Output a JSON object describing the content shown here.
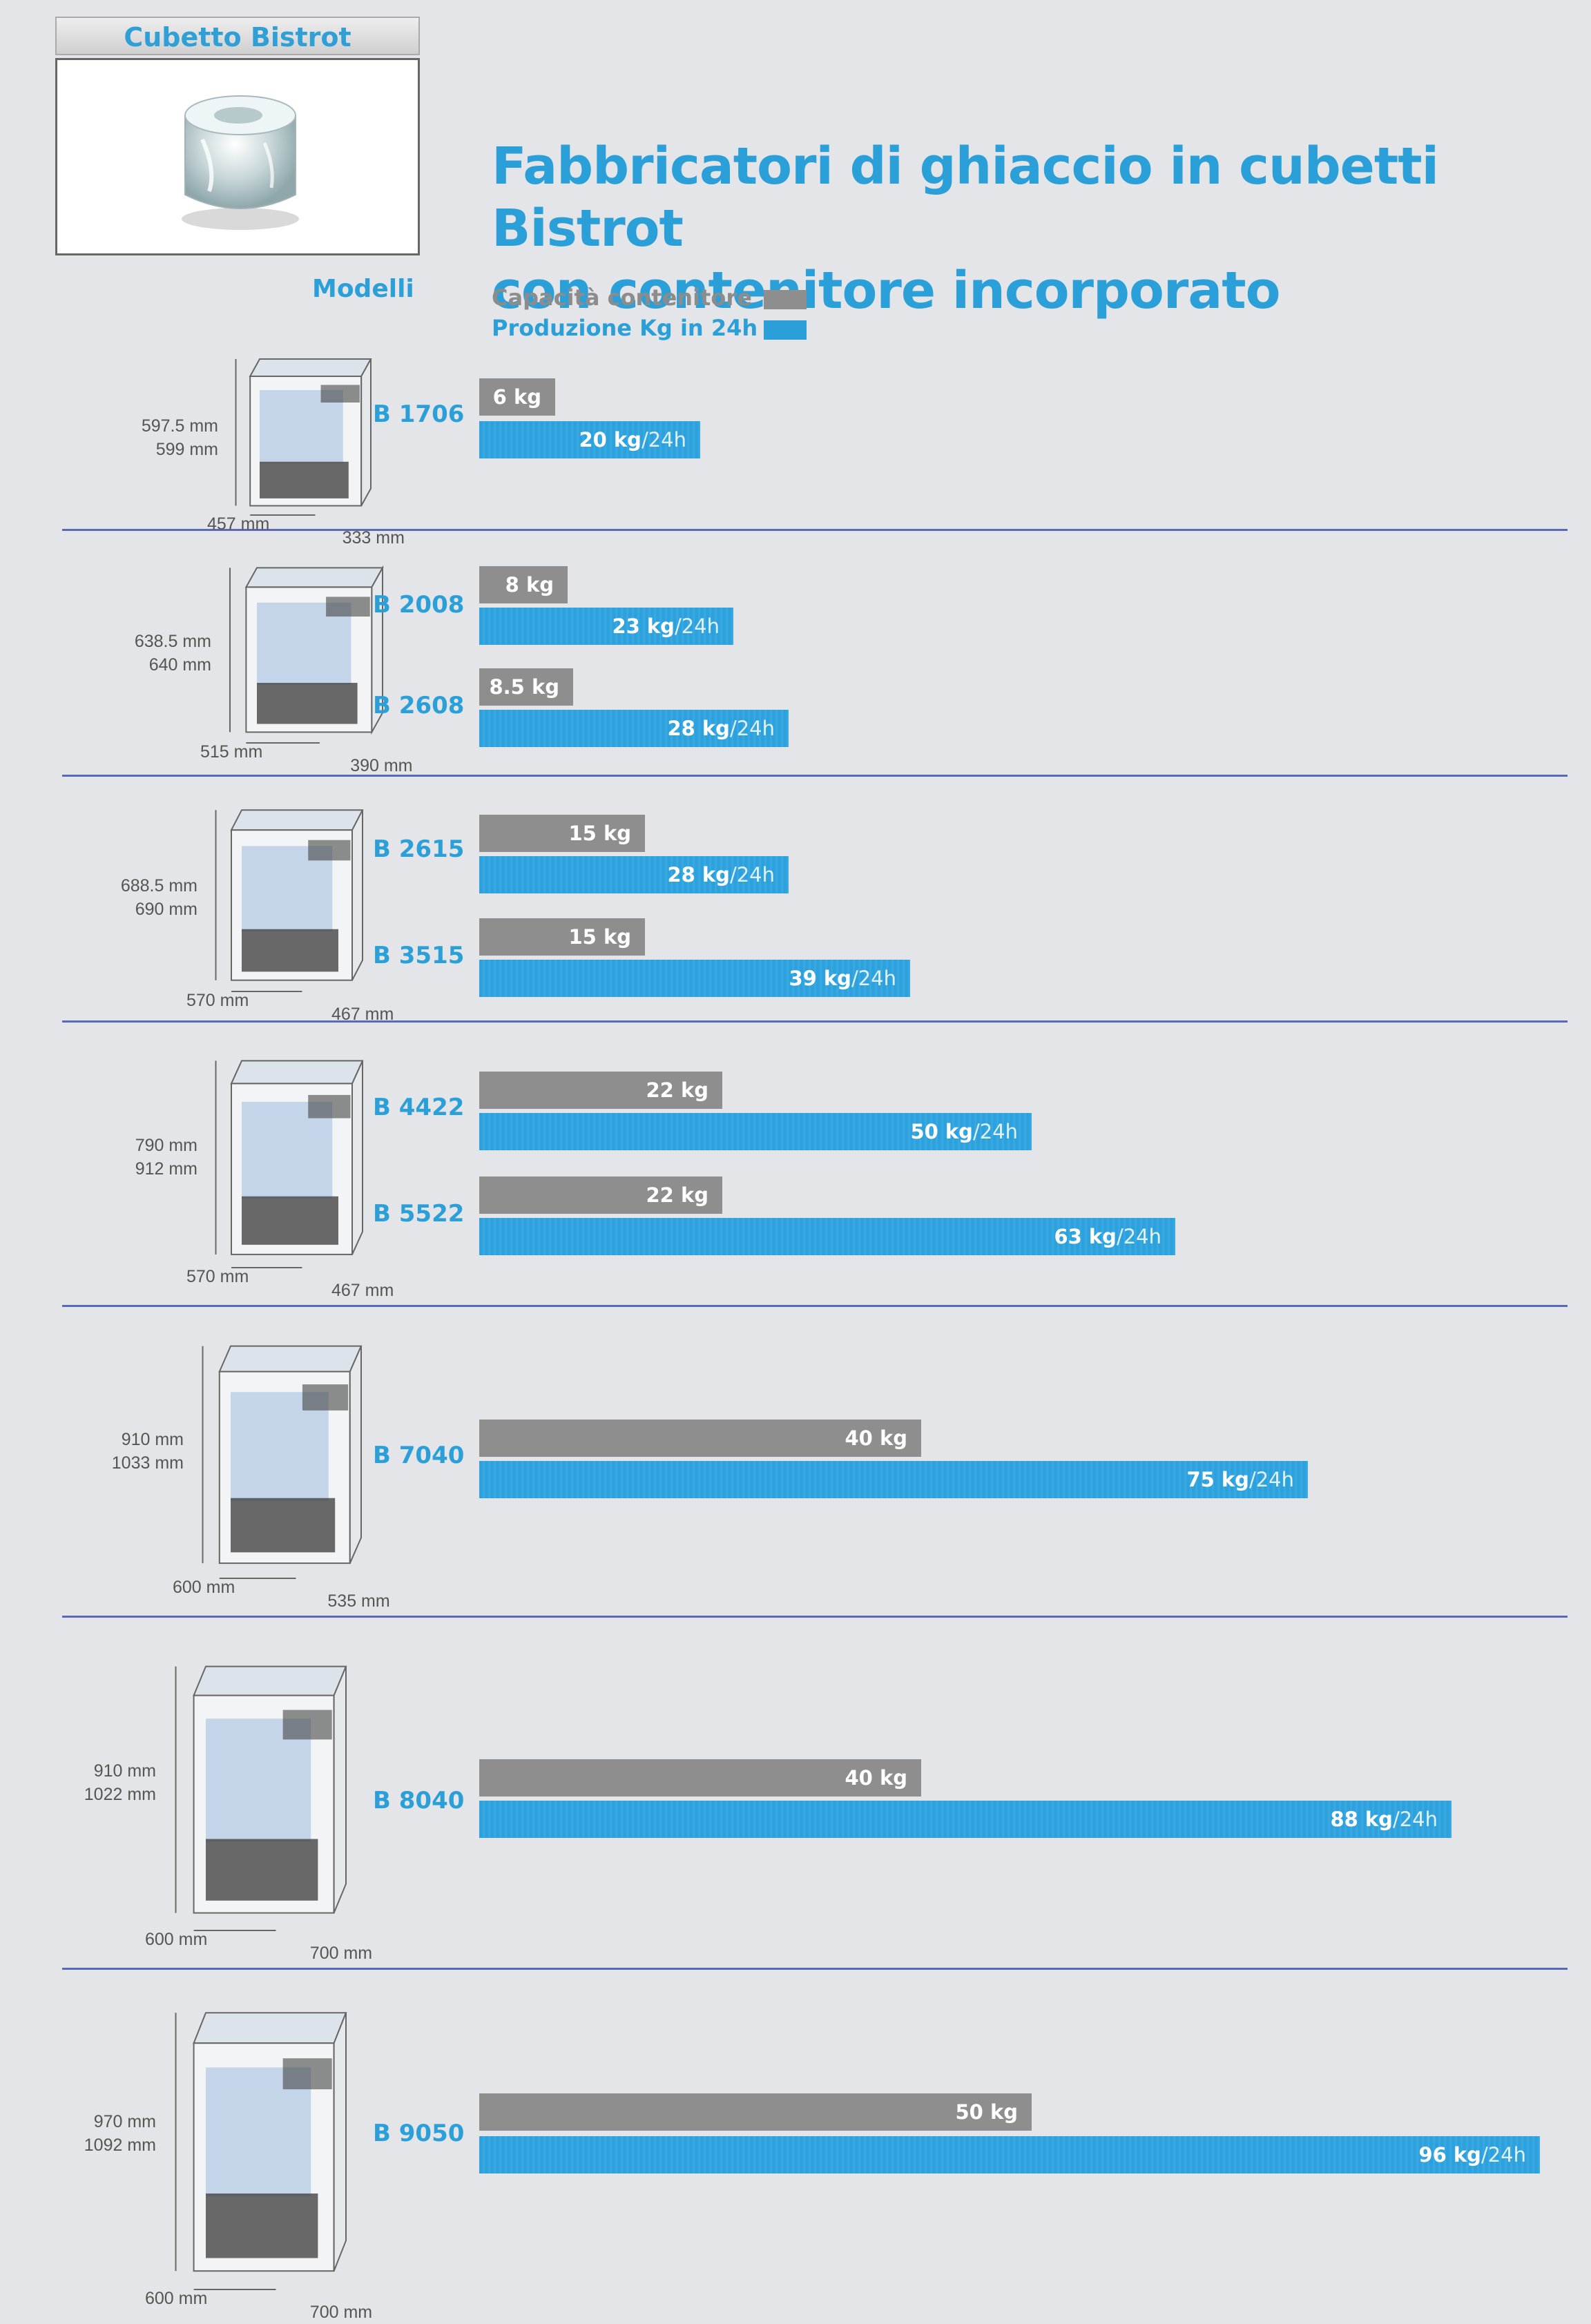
{
  "header": {
    "badge": "Cubetto Bistrot",
    "title_line1": "Fabbricatori di ghiaccio in cubetti Bistrot",
    "title_line2": "con contenitore incorporato",
    "models_heading": "Modelli"
  },
  "legend": {
    "capacity": "Capacità contenitore",
    "production": "Produzione Kg in 24h"
  },
  "colors": {
    "capacity": "#8e8e8e",
    "production": "#2ea0db",
    "divider": "#5a68b8"
  },
  "groups": [
    {
      "h1": "597.5 mm",
      "h2": "599 mm",
      "depth": "457 mm",
      "width": "333 mm",
      "models": [
        {
          "name": "B 1706",
          "cap": "6 kg",
          "prod": "20 kg",
          "unit": "/24h"
        }
      ]
    },
    {
      "h1": "638.5 mm",
      "h2": "640 mm",
      "depth": "515 mm",
      "width": "390 mm",
      "models": [
        {
          "name": "B 2008",
          "cap": "8 kg",
          "prod": "23 kg",
          "unit": "/24h"
        },
        {
          "name": "B 2608",
          "cap": "8.5 kg",
          "prod": "28 kg",
          "unit": "/24h"
        }
      ]
    },
    {
      "h1": "688.5 mm",
      "h2": "690 mm",
      "depth": "570 mm",
      "width": "467 mm",
      "models": [
        {
          "name": "B 2615",
          "cap": "15 kg",
          "prod": "28 kg",
          "unit": "/24h"
        },
        {
          "name": "B 3515",
          "cap": "15 kg",
          "prod": "39 kg",
          "unit": "/24h"
        }
      ]
    },
    {
      "h1": "790 mm",
      "h2": "912 mm",
      "depth": "570 mm",
      "width": "467 mm",
      "models": [
        {
          "name": "B 4422",
          "cap": "22 kg",
          "prod": "50 kg",
          "unit": "/24h"
        },
        {
          "name": "B 5522",
          "cap": "22 kg",
          "prod": "63 kg",
          "unit": "/24h"
        }
      ]
    },
    {
      "h1": "910 mm",
      "h2": "1033 mm",
      "depth": "600 mm",
      "width": "535 mm",
      "models": [
        {
          "name": "B 7040",
          "cap": "40 kg",
          "prod": "75 kg",
          "unit": "/24h"
        }
      ]
    },
    {
      "h1": "910 mm",
      "h2": "1022 mm",
      "depth": "600 mm",
      "width": "700 mm",
      "models": [
        {
          "name": "B 8040",
          "cap": "40 kg",
          "prod": "88 kg",
          "unit": "/24h"
        }
      ]
    },
    {
      "h1": "970 mm",
      "h2": "1092 mm",
      "depth": "600 mm",
      "width": "700 mm",
      "models": [
        {
          "name": "B 9050",
          "cap": "50 kg",
          "prod": "96 kg",
          "unit": "/24h"
        }
      ]
    }
  ],
  "chart_data": {
    "type": "bar",
    "title": "Fabbricatori di ghiaccio in cubetti Bistrot con contenitore incorporato",
    "categories": [
      "B 1706",
      "B 2008",
      "B 2608",
      "B 2615",
      "B 3515",
      "B 4422",
      "B 5522",
      "B 7040",
      "B 8040",
      "B 9050"
    ],
    "series": [
      {
        "name": "Capacità contenitore",
        "values": [
          6,
          8,
          8.5,
          15,
          15,
          22,
          22,
          40,
          40,
          50
        ]
      },
      {
        "name": "Produzione Kg in 24h",
        "values": [
          20,
          23,
          28,
          28,
          39,
          50,
          63,
          75,
          88,
          96
        ]
      }
    ],
    "orientation": "horizontal",
    "grid": false
  }
}
